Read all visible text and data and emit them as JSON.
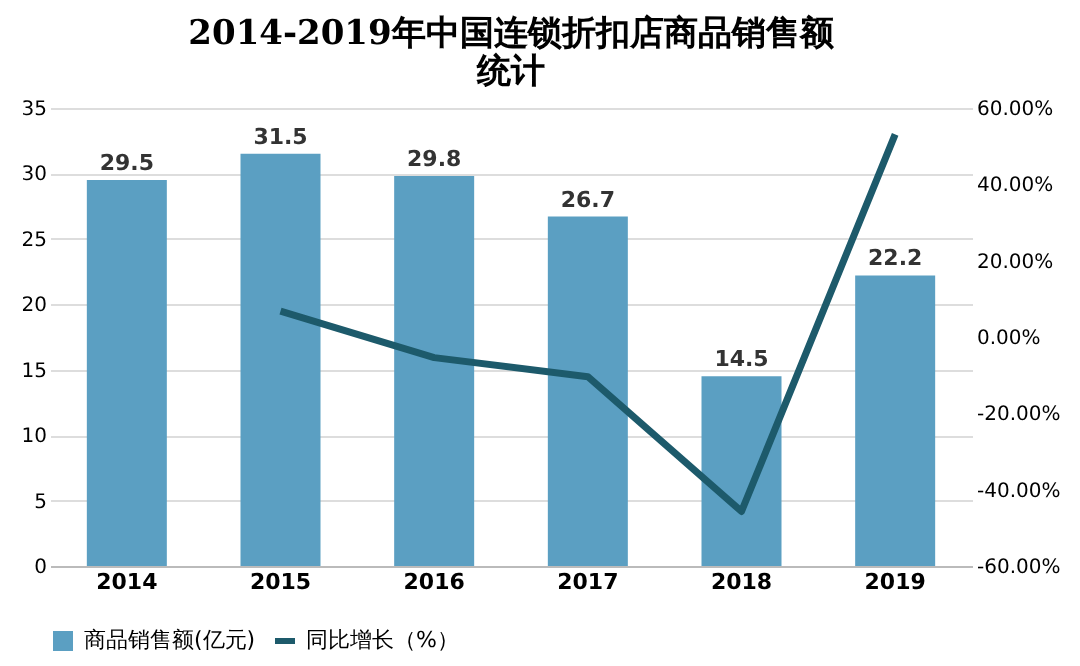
{
  "chart_data": {
    "type": "bar",
    "title": "2014-2019年中国连锁折扣店商品销售额统计",
    "categories": [
      "2014",
      "2015",
      "2016",
      "2017",
      "2018",
      "2019"
    ],
    "series": [
      {
        "name": "商品销售额(亿元)",
        "color": "#5b9fc2",
        "values": [
          29.5,
          31.5,
          29.8,
          26.7,
          14.5,
          22.2
        ],
        "data_labels": true
      },
      {
        "name": "同比增长（%）",
        "type": "line",
        "axis": "y2",
        "color": "#1d5a6b",
        "values": [
          null,
          6.8,
          -5.4,
          -10.4,
          -45.7,
          53.1
        ]
      }
    ],
    "ylim": [
      0,
      35
    ],
    "yticks": [
      0,
      5,
      10,
      15,
      20,
      25,
      30,
      35
    ],
    "y2lim": [
      -60,
      60
    ],
    "y2ticks": [
      {
        "value": -60,
        "label": "-60.00%"
      },
      {
        "value": -40,
        "label": "-40.00%"
      },
      {
        "value": -20,
        "label": "-20.00%"
      },
      {
        "value": 0,
        "label": "0.00%"
      },
      {
        "value": 20,
        "label": "20.00%"
      },
      {
        "value": 40,
        "label": "40.00%"
      },
      {
        "value": 60,
        "label": "60.00%"
      }
    ],
    "grid": "y",
    "legend": "bottom",
    "marker": "none",
    "line_style": "solid"
  }
}
